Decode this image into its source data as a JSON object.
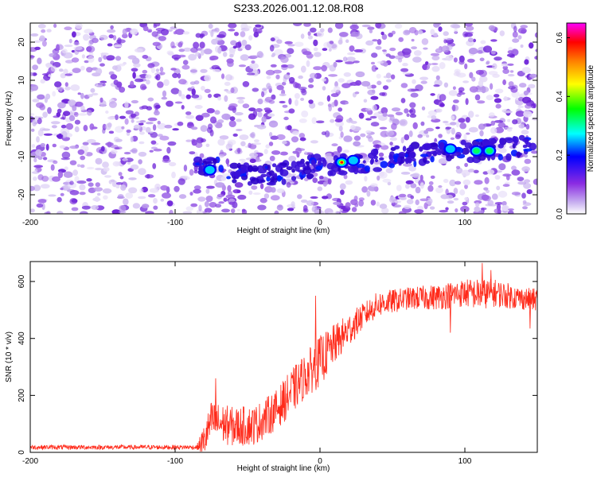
{
  "title": "S233.2026.001.12.08.R08",
  "chart_data": [
    {
      "type": "heatmap",
      "title": "S233.2026.001.12.08.R08",
      "xlabel": "Height of straight line (km)",
      "ylabel": "Frequency (Hz)",
      "xlim": [
        -200,
        150
      ],
      "ylim": [
        -25,
        25
      ],
      "xticks": [
        -200,
        -100,
        0,
        100
      ],
      "yticks": [
        -20,
        -10,
        0,
        10,
        20
      ],
      "colorbar": {
        "label": "Normalized spectral amplitude",
        "range": [
          0.0,
          0.65
        ],
        "ticks": [
          0.0,
          0.2,
          0.4,
          0.6
        ],
        "colors": [
          "#ffffff",
          "#8a2be2",
          "#0000ff",
          "#00ffff",
          "#00ff00",
          "#ffff00",
          "#ff8000",
          "#ff0000",
          "#ff00ff"
        ]
      },
      "signal_track": {
        "description_points_x": [
          -80,
          -60,
          -40,
          -20,
          0,
          20,
          40,
          60,
          80,
          100,
          120,
          150
        ],
        "description_points_y": [
          -12.5,
          -14,
          -15,
          -14,
          -12,
          -12,
          -11,
          -9.5,
          -9,
          -8.5,
          -8,
          -7
        ],
        "peaks": [
          {
            "x": 15,
            "y": -11.5,
            "amplitude": 0.65
          },
          {
            "x": 108,
            "y": -8.5,
            "amplitude": 0.35
          },
          {
            "x": 117,
            "y": -8.5,
            "amplitude": 0.3
          },
          {
            "x": -76,
            "y": -13.5,
            "amplitude": 0.25
          },
          {
            "x": 23,
            "y": -11,
            "amplitude": 0.25
          },
          {
            "x": 90,
            "y": -8,
            "amplitude": 0.22
          }
        ]
      }
    },
    {
      "type": "line",
      "xlabel": "Height of straight line (km)",
      "ylabel": "SNR (10 * v/v)",
      "xlim": [
        -200,
        150
      ],
      "ylim": [
        0,
        670
      ],
      "xticks": [
        -200,
        -100,
        0,
        100
      ],
      "yticks": [
        0,
        200,
        400,
        600
      ],
      "color": "#ff2a1a",
      "envelope_x": [
        -200,
        -85,
        -80,
        -75,
        -60,
        -45,
        -30,
        -20,
        -10,
        0,
        10,
        20,
        30,
        40,
        60,
        80,
        100,
        110,
        120,
        140,
        150
      ],
      "envelope_y": [
        18,
        18,
        40,
        110,
        90,
        95,
        150,
        210,
        270,
        320,
        380,
        430,
        480,
        520,
        540,
        545,
        560,
        555,
        560,
        540,
        535
      ],
      "noise_amplitude": [
        8,
        8,
        60,
        70,
        70,
        70,
        70,
        80,
        80,
        90,
        70,
        60,
        45,
        45,
        40,
        45,
        50,
        55,
        50,
        40,
        40
      ],
      "spikes": [
        {
          "x": -72,
          "y": 260
        },
        {
          "x": -3,
          "y": 550
        },
        {
          "x": 112,
          "y": 665
        },
        {
          "x": 118,
          "y": 640
        },
        {
          "x": 145,
          "y": 435
        },
        {
          "x": 90,
          "y": 420
        }
      ]
    }
  ]
}
